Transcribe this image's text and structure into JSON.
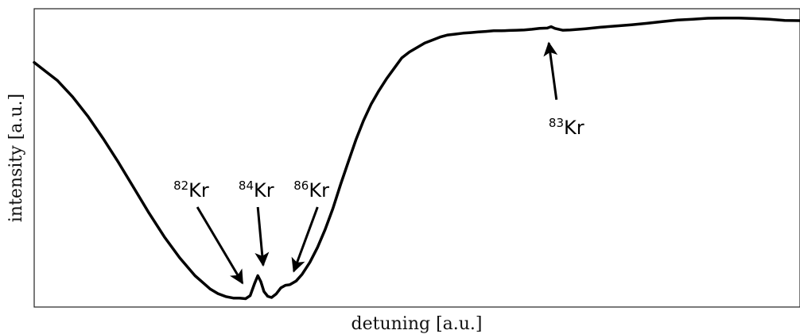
{
  "chart_data": {
    "type": "line",
    "xlabel": "detuning [a.u.]",
    "ylabel": "intensity [a.u.]",
    "xlim": [
      0,
      100
    ],
    "ylim": [
      0,
      100
    ],
    "grid": false,
    "ticks": false,
    "series": [
      {
        "color": "#000000",
        "x": [
          0,
          1.5,
          3,
          5,
          7,
          9,
          11,
          13,
          15,
          17,
          19,
          21,
          23,
          24,
          25,
          26,
          26.8,
          27.6,
          28.2,
          28.8,
          29.2,
          29.6,
          30,
          30.5,
          31,
          31.6,
          32.2,
          32.8,
          33.4,
          34.2,
          35,
          36,
          37,
          38,
          39,
          40,
          41,
          42,
          43,
          44,
          45,
          46,
          47,
          48,
          49,
          50,
          51,
          52,
          53,
          54,
          55,
          56,
          57,
          58,
          59,
          60,
          61,
          62,
          63,
          64,
          65,
          66,
          67,
          67.5,
          68,
          69,
          70,
          72,
          74,
          76,
          78,
          80,
          82,
          84,
          86,
          88,
          90,
          92,
          94,
          96,
          98,
          100
        ],
        "y": [
          82,
          79,
          76,
          70.5,
          64,
          56.5,
          48.5,
          40,
          31.5,
          23.5,
          16.5,
          10.5,
          6,
          4.5,
          3.5,
          3,
          3,
          2.8,
          3.8,
          8,
          10.5,
          8.5,
          5.2,
          3.6,
          3.2,
          4.4,
          6.4,
          7.3,
          7.5,
          8.7,
          11,
          15,
          20,
          26,
          33,
          41,
          48.5,
          56,
          62.5,
          68,
          72.5,
          76.5,
          80,
          83.5,
          85.5,
          87,
          88.5,
          89.5,
          90.5,
          91.2,
          91.5,
          91.8,
          92,
          92.2,
          92.4,
          92.6,
          92.6,
          92.7,
          92.8,
          92.9,
          93.1,
          93.4,
          93.5,
          94,
          93.4,
          92.8,
          92.9,
          93.3,
          93.8,
          94.2,
          94.6,
          95.1,
          95.7,
          96.2,
          96.5,
          96.8,
          96.9,
          96.9,
          96.7,
          96.5,
          96.1,
          96
        ]
      }
    ],
    "annotations": [
      {
        "isotope": "82",
        "element": "Kr",
        "text_x": 20.5,
        "text_y": 37,
        "arrow_start": [
          21.3,
          33.5
        ],
        "arrow_end": [
          27.2,
          8
        ]
      },
      {
        "isotope": "84",
        "element": "Kr",
        "text_x": 29,
        "text_y": 37,
        "arrow_start": [
          29.2,
          33.5
        ],
        "arrow_end": [
          29.9,
          14
        ]
      },
      {
        "isotope": "86",
        "element": "Kr",
        "text_x": 36.2,
        "text_y": 37,
        "arrow_start": [
          37,
          33.5
        ],
        "arrow_end": [
          33.9,
          12
        ]
      },
      {
        "isotope": "83",
        "element": "Kr",
        "text_x": 69.5,
        "text_y": 58,
        "arrow_start": [
          68.2,
          69.5
        ],
        "arrow_end": [
          67.2,
          88.5
        ]
      }
    ]
  }
}
